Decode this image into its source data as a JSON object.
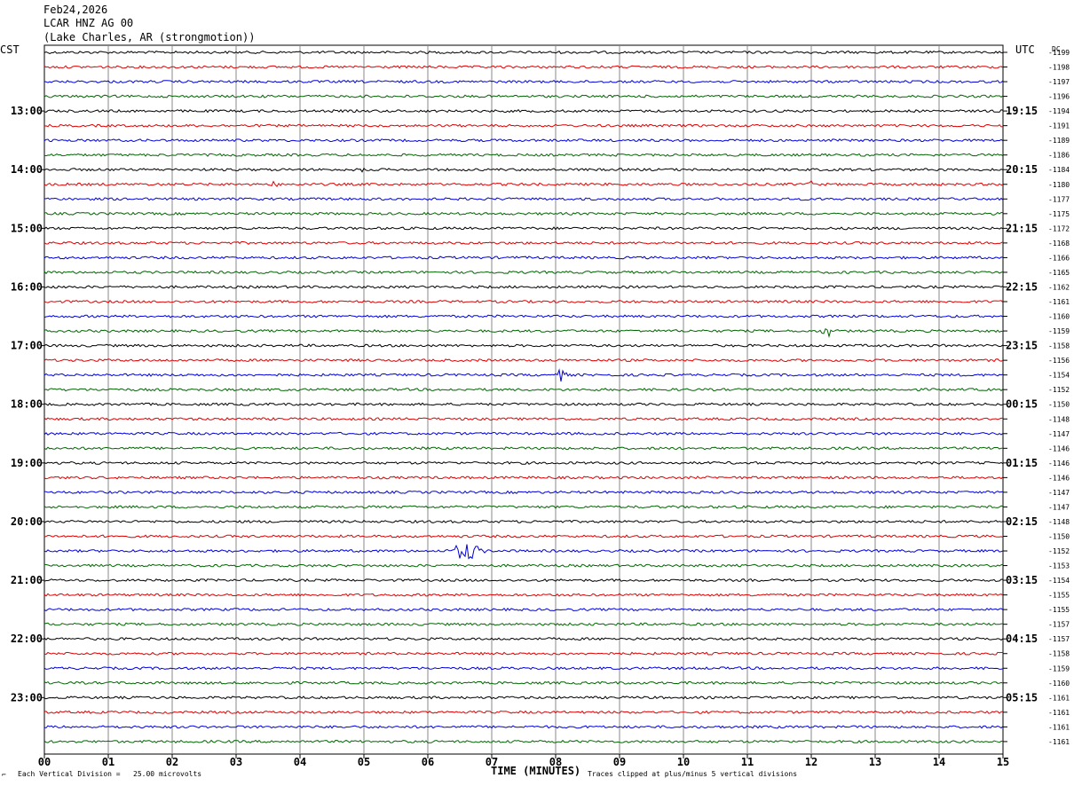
{
  "header": {
    "date": "Feb24,2026",
    "station": "LCAR HNZ AG 00",
    "location": "(Lake Charles, AR (strongmotion))"
  },
  "left_tz": "CST",
  "right_tz": "UTC",
  "dc_label": "DC",
  "footer": {
    "scale_note": "Each Vertical Division =   25.00 microvolts",
    "xlabel": "TIME (MINUTES)",
    "clip_note": "Traces clipped at plus/minus 5 vertical divisions"
  },
  "chart_data": {
    "type": "line",
    "title": "LCAR HNZ AG 00",
    "xlabel": "TIME (MINUTES)",
    "xlim": [
      0,
      15
    ],
    "x_ticks": [
      "00",
      "01",
      "02",
      "03",
      "04",
      "05",
      "06",
      "07",
      "08",
      "09",
      "10",
      "11",
      "12",
      "13",
      "14",
      "15"
    ],
    "grid": true,
    "trace_colors": [
      "#000000",
      "#dd0000",
      "#0000dd",
      "#006600"
    ],
    "rows_per_hour": 4,
    "left_hour_labels": [
      "13:00",
      "14:00",
      "15:00",
      "16:00",
      "17:00",
      "18:00",
      "19:00",
      "20:00",
      "21:00",
      "22:00",
      "23:00"
    ],
    "right_hour_labels": [
      "19:15",
      "20:15",
      "21:15",
      "22:15",
      "23:15",
      "00:15",
      "01:15",
      "02:15",
      "03:15",
      "04:15",
      "05:15"
    ],
    "dc_offsets": [
      "-1199",
      "-1198",
      "-1197",
      "-1196",
      "-1194",
      "-1191",
      "-1189",
      "-1186",
      "-1184",
      "-1180",
      "-1177",
      "-1175",
      "-1172",
      "-1168",
      "-1166",
      "-1165",
      "-1162",
      "-1161",
      "-1160",
      "-1159",
      "-1158",
      "-1156",
      "-1154",
      "-1152",
      "-1150",
      "-1148",
      "-1147",
      "-1146",
      "-1146",
      "-1146",
      "-1147",
      "-1147",
      "-1148",
      "-1150",
      "-1152",
      "-1153",
      "-1154",
      "-1155",
      "-1155",
      "-1157",
      "-1157",
      "-1158",
      "-1159",
      "-1160",
      "-1161",
      "-1161",
      "-1161",
      "-1161"
    ],
    "events": [
      {
        "row": 34,
        "minute": 6.6,
        "amplitude": "large"
      },
      {
        "row": 19,
        "minute": 12.25,
        "amplitude": "medium"
      },
      {
        "row": 22,
        "minute": 8.1,
        "amplitude": "medium"
      },
      {
        "row": 9,
        "minute": 3.6,
        "amplitude": "small"
      },
      {
        "row": 9,
        "minute": 12.0,
        "amplitude": "small"
      },
      {
        "row": 8,
        "minute": 5.0,
        "amplitude": "small"
      }
    ]
  }
}
